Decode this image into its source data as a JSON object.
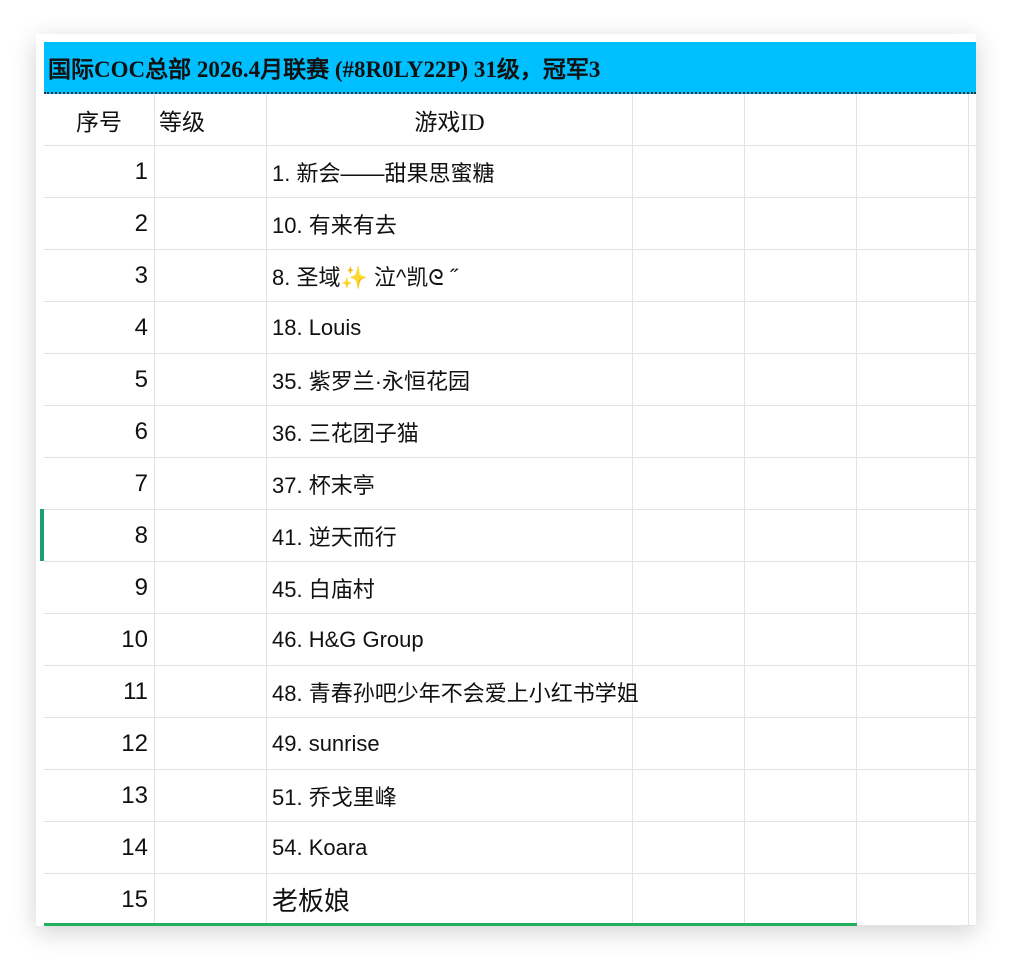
{
  "sheet": {
    "title": "国际COC总部 2026.4月联赛 (#8R0LY22P) 31级，冠军3",
    "title_bg": "#00BFFF",
    "headers": [
      "序号",
      "等级",
      "游戏ID"
    ],
    "rows": [
      {
        "no": "1",
        "level": "",
        "id": "1. 新会——甜果思蜜糖"
      },
      {
        "no": "2",
        "level": "",
        "id": "10. 有来有去"
      },
      {
        "no": "3",
        "level": "",
        "id": "8. 圣域✨      泣^凯ᘓ    ˝"
      },
      {
        "no": "4",
        "level": "",
        "id": "18. Louis"
      },
      {
        "no": "5",
        "level": "",
        "id": "35. 紫罗兰·永恒花园"
      },
      {
        "no": "6",
        "level": "",
        "id": "36. 三花团子猫"
      },
      {
        "no": "7",
        "level": "",
        "id": "37. 杯末亭"
      },
      {
        "no": "8",
        "level": "",
        "id": "41. 逆天而行"
      },
      {
        "no": "9",
        "level": "",
        "id": "45. 白庙村"
      },
      {
        "no": "10",
        "level": "",
        "id": "46. H&G Group"
      },
      {
        "no": "11",
        "level": "",
        "id": "48. 青春孙吧少年不会爱上小红书学姐"
      },
      {
        "no": "12",
        "level": "",
        "id": "49. sunrise"
      },
      {
        "no": "13",
        "level": "",
        "id": "51. 乔戈里峰"
      },
      {
        "no": "14",
        "level": "",
        "id": "54. Koara"
      },
      {
        "no": "15",
        "level": "",
        "id": "老板娘"
      }
    ],
    "selected_row": "8",
    "accent": "#1aa06d"
  }
}
